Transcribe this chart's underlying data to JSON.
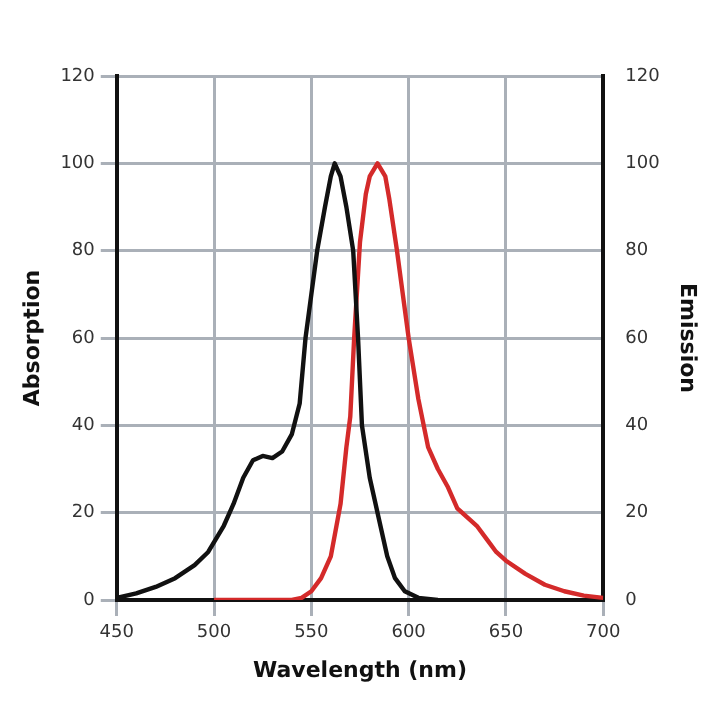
{
  "chart_data": {
    "type": "line",
    "xlabel": "Wavelength (nm)",
    "ylabel": "Absorption",
    "y2label": "Emission",
    "xlim": [
      450,
      700
    ],
    "xticks": [
      450,
      500,
      550,
      600,
      650,
      700
    ],
    "ylim": [
      0,
      120
    ],
    "yticks": [
      0,
      20,
      40,
      60,
      80,
      100,
      120
    ],
    "y2lim": [
      0,
      120
    ],
    "y2ticks": [
      0,
      20,
      40,
      60,
      80,
      100,
      120
    ],
    "grid": true,
    "legend": false,
    "marker": "none",
    "line_style": "solid",
    "series": [
      {
        "color": "#111111",
        "x": [
          450,
          460,
          470,
          480,
          490,
          497,
          505,
          510,
          515,
          520,
          525,
          530,
          535,
          540,
          544,
          547,
          550,
          553,
          557,
          560,
          562,
          565,
          568,
          571.5,
          574,
          576,
          580,
          584,
          589,
          593,
          598,
          605,
          615
        ],
        "values": [
          0.5,
          1.5,
          3,
          5,
          8,
          11,
          17,
          22,
          28,
          32,
          33,
          32.5,
          34,
          38,
          45,
          60,
          70,
          80,
          90,
          97,
          100,
          97,
          90,
          80,
          60,
          40,
          28,
          20,
          10,
          5,
          2,
          0.5,
          0
        ]
      },
      {
        "color": "#d42a2a",
        "axis": "y2",
        "x": [
          500,
          520,
          540,
          545,
          550,
          555,
          560,
          565,
          568,
          570,
          572,
          575,
          578,
          580,
          584,
          588,
          590,
          594,
          600,
          605,
          610,
          615,
          620,
          625,
          630,
          635,
          640,
          645,
          650,
          660,
          670,
          680,
          690,
          700
        ],
        "values": [
          0,
          0,
          0,
          0.5,
          2,
          5,
          10,
          22,
          35,
          42,
          60,
          82,
          93,
          97,
          100,
          97,
          92,
          80,
          60,
          46,
          35,
          30,
          26,
          21,
          19,
          17,
          14,
          11,
          9,
          6,
          3.5,
          2,
          1,
          0.5
        ]
      }
    ]
  }
}
